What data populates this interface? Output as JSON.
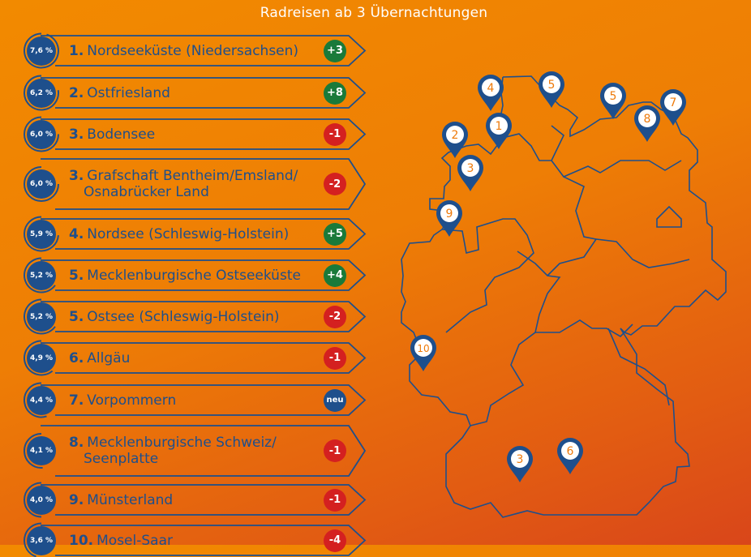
{
  "subtitle": "Radreisen ab 3 Übernachtungen",
  "colors": {
    "blue": "#1e4f8c",
    "up": "#1a7a3a",
    "down": "#d42020",
    "new": "#1e4f8c",
    "pin_number": "#ee7a0a"
  },
  "ranking": [
    {
      "share": "7,6 %",
      "value": 7.6,
      "rank": "1.",
      "name": [
        "Nordseeküste (Niedersachsen)"
      ],
      "change": "+3",
      "trend": "up"
    },
    {
      "share": "6,2 %",
      "value": 6.2,
      "rank": "2.",
      "name": [
        "Ostfriesland"
      ],
      "change": "+8",
      "trend": "up"
    },
    {
      "share": "6,0 %",
      "value": 6.0,
      "rank": "3.",
      "name": [
        "Bodensee"
      ],
      "change": "-1",
      "trend": "down"
    },
    {
      "share": "6,0 %",
      "value": 6.0,
      "rank": "3.",
      "name": [
        "Grafschaft Bentheim/Emsland/",
        "Osnabrücker Land"
      ],
      "change": "-2",
      "trend": "down"
    },
    {
      "share": "5,9 %",
      "value": 5.9,
      "rank": "4.",
      "name": [
        "Nordsee (Schleswig-Holstein)"
      ],
      "change": "+5",
      "trend": "up"
    },
    {
      "share": "5,2 %",
      "value": 5.2,
      "rank": "5.",
      "name": [
        "Mecklenburgische Ostseeküste"
      ],
      "change": "+4",
      "trend": "up"
    },
    {
      "share": "5,2 %",
      "value": 5.2,
      "rank": "5.",
      "name": [
        "Ostsee (Schleswig-Holstein)"
      ],
      "change": "-2",
      "trend": "down"
    },
    {
      "share": "4,9 %",
      "value": 4.9,
      "rank": "6.",
      "name": [
        "Allgäu"
      ],
      "change": "-1",
      "trend": "down"
    },
    {
      "share": "4,4 %",
      "value": 4.4,
      "rank": "7.",
      "name": [
        "Vorpommern"
      ],
      "change": "neu",
      "trend": "new"
    },
    {
      "share": "4,1 %",
      "value": 4.1,
      "rank": "8.",
      "name": [
        "Mecklenburgische Schweiz/",
        "Seenplatte"
      ],
      "change": "-1",
      "trend": "down"
    },
    {
      "share": "4,0 %",
      "value": 4.0,
      "rank": "9.",
      "name": [
        "Münsterland"
      ],
      "change": "-1",
      "trend": "down"
    },
    {
      "share": "3,6 %",
      "value": 3.6,
      "rank": "10.",
      "name": [
        "Mosel-Saar"
      ],
      "change": "-4",
      "trend": "down"
    }
  ],
  "map_pins": [
    "4",
    "5",
    "5",
    "7",
    "8",
    "2",
    "1",
    "3",
    "9",
    "10",
    "3",
    "6"
  ]
}
